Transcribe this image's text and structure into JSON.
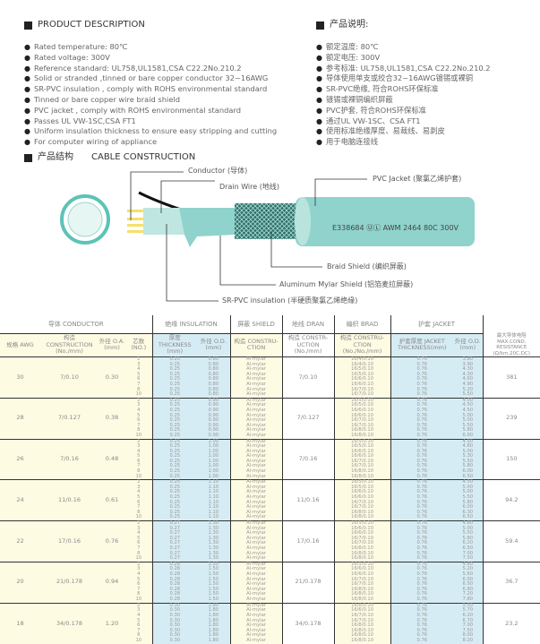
{
  "description": {
    "en_title": "PRODUCT DESCRIPTION",
    "cn_title": "产品说明:",
    "en_items": [
      "Rated temperature: 80℃",
      "Rated voltage: 300V",
      "Reference standard: UL758,UL1581,CSA C22.2No.210.2",
      "Solid or stranded ,tinned or bare copper conductor 32~16AWG",
      "SR-PVC insulation , comply with ROHS environmental standard",
      "Tinned or bare copper wire braid shield",
      "PVC jacket , comply with ROHS environmental standard",
      "Passes UL VW-1SC,CSA FT1",
      "Uniform insulation thickness to ensure easy stripping and cutting",
      "For computer wiring of appliance"
    ],
    "cn_items": [
      "额定温度: 80℃",
      "额定电压: 300V",
      "参考标准: UL758,UL1581,CSA C22.2No.210.2",
      "导体使用单支或绞合32~16AWG镀锡或裸铜",
      "SR-PVC绝缘, 符合ROHS环保标准",
      "镀锡或裸铜编织屏蔽",
      "PVC护套, 符合ROHS环保标准",
      "通过UL VW-1SC、CSA FT1",
      "使用标准绝缘厚度、易裁线、易剥皮",
      "用于电脑连接线"
    ]
  },
  "construction": {
    "cn_title": "产品结构",
    "en_title": "CABLE CONSTRUCTION",
    "labels": {
      "conductor": "Conductor (导体)",
      "drain": "Drain Wire (地线)",
      "jacket": "PVC Jacket (聚氯乙烯护套)",
      "braid": "Braid Shield (编织屏蔽)",
      "mylar": "Aluminum Mylar Shield (铝箔麦拉屏蔽)",
      "insulation": "SR-PVC insulation (半硬质聚氯乙烯绝缘)"
    },
    "marking": "E338684 ⓊⓁ AWM 2464 80C 300V",
    "colors": {
      "jacket": "#8fd3cc",
      "conductor": "#f5e06a",
      "braid": "#2f6e6a"
    }
  },
  "table": {
    "groups": {
      "conductor": "导体 CONDUCTOR",
      "insulation": "绝缘 INSULATION",
      "shield": "屏蔽 SHIELD",
      "drain": "地线 DRAN",
      "braid": "编织 BRAD",
      "jacket": "护套 JACKET"
    },
    "cols": {
      "awg": "规格 AWG",
      "construction": "构造 CONSTRUCTION (No./mm)",
      "od": "外径 O.A. (mm)",
      "cores": "芯数 (NO.)",
      "ins_thick": "厚度 THICKNESS (mm)",
      "ins_od": "外径 O.D. (mm)",
      "shield": "构造 CONSTRU- CTION",
      "drain": "构造 CONSTR- UCTION (No./mm)",
      "braid": "构造 CONSTRU- CTION (No./No./mm)",
      "jacket_thick": "护套厚度 JACKET THICKNESS(mm)",
      "jacket_od": "外径 O.D. (mm)",
      "resistance": "最大导体电阻 MAX.COND. RESISTANCE (Ω/km,20C,DC)"
    },
    "rows": [
      {
        "awg": "30",
        "construction": "7/0.10",
        "od": "0.30",
        "ins_t": "0.25",
        "ins_od": "0.80",
        "drain": "7/0.10",
        "braid": [
          "16/4/0.10",
          "16/4/0.10",
          "16/5/0.10",
          "16/5/0.10",
          "16/6/0.10",
          "16/6/0.10",
          "16/7/0.10",
          "16/7/0.10"
        ],
        "jod": [
          "3.80",
          "3.90",
          "4.30",
          "4.30",
          "4.60",
          "4.90",
          "5.20",
          "5.50"
        ],
        "res": "381"
      },
      {
        "awg": "28",
        "construction": "7/0.127",
        "od": "0.38",
        "ins_t": "0.25",
        "ins_od": "0.90",
        "drain": "7/0.127",
        "braid": [
          "16/5/0.10",
          "16/5/0.10",
          "16/6/0.10",
          "16/6/0.10",
          "16/7/0.10",
          "16/7/0.10",
          "16/8/0.10",
          "16/8/0.10"
        ],
        "jod": [
          "4.00",
          "4.50",
          "4.50",
          "5.00",
          "5.00",
          "5.50",
          "5.80",
          "6.00"
        ],
        "res": "239"
      },
      {
        "awg": "26",
        "construction": "7/0.16",
        "od": "0.48",
        "ins_t": "0.25",
        "ins_od": "1.00",
        "drain": "7/0.16",
        "braid": [
          "16/5/0.10",
          "16/5/0.10",
          "16/6/0.10",
          "16/6/0.10",
          "16/7/0.10",
          "16/7/0.10",
          "16/8/0.10",
          "16/8/0.10"
        ],
        "jod": [
          "4.50",
          "4.80",
          "5.00",
          "5.30",
          "5.50",
          "5.80",
          "6.00",
          "6.50"
        ],
        "res": "150"
      },
      {
        "awg": "24",
        "construction": "11/0.16",
        "od": "0.61",
        "ins_t": "0.25",
        "ins_od": "1.10",
        "drain": "11/0.16",
        "braid": [
          "16/5/0.10",
          "16/5/0.10",
          "16/6/0.10",
          "16/6/0.10",
          "16/7/0.10",
          "16/7/0.10",
          "16/8/0.10",
          "16/8/0.10"
        ],
        "jod": [
          "4.50",
          "5.00",
          "5.00",
          "5.50",
          "5.80",
          "6.00",
          "6.30",
          "6.50"
        ],
        "res": "94.2"
      },
      {
        "awg": "22",
        "construction": "17/0.16",
        "od": "0.76",
        "ins_t": "0.27",
        "ins_od": "1.30",
        "drain": "17/0.16",
        "braid": [
          "16/5/0.10",
          "16/6/0.10",
          "16/6/0.10",
          "16/7/0.10",
          "16/7/0.10",
          "16/8/0.10",
          "16/8/0.10",
          "16/8/0.10"
        ],
        "jod": [
          "4.80",
          "5.00",
          "5.50",
          "5.80",
          "6.20",
          "6.50",
          "7.00",
          "7.50"
        ],
        "res": "59.4"
      },
      {
        "awg": "20",
        "construction": "21/0.178",
        "od": "0.94",
        "ins_t": "0.28",
        "ins_od": "1.50",
        "drain": "21/0.178",
        "braid": [
          "16/5/0.10",
          "16/6/0.10",
          "16/6/0.10",
          "16/7/0.10",
          "16/7/0.10",
          "16/8/0.10",
          "16/8/0.10",
          "16/8/0.10"
        ],
        "jod": [
          "4.80",
          "5.20",
          "5.60",
          "6.00",
          "6.50",
          "6.80",
          "7.20",
          "7.80"
        ],
        "res": "36.7"
      },
      {
        "awg": "18",
        "construction": "34/0.178",
        "od": "1.20",
        "ins_t": "0.30",
        "ins_od": "1.80",
        "drain": "34/0.178",
        "braid": [
          "16/6/0.10",
          "16/6/0.10",
          "16/7/0.10",
          "16/7/0.10",
          "16/8/0.10",
          "16/8/0.10",
          "16/8/0.10",
          "16/8/0.10"
        ],
        "jod": [
          "5.50",
          "5.70",
          "6.20",
          "6.70",
          "7.00",
          "7.50",
          "8.00",
          "8.20"
        ],
        "res": "23.2"
      }
    ],
    "cores": [
      "2",
      "3",
      "4",
      "5",
      "6",
      "7",
      "8",
      "10"
    ],
    "shield": "Al-mylar",
    "jacket_thick": "0.76"
  }
}
